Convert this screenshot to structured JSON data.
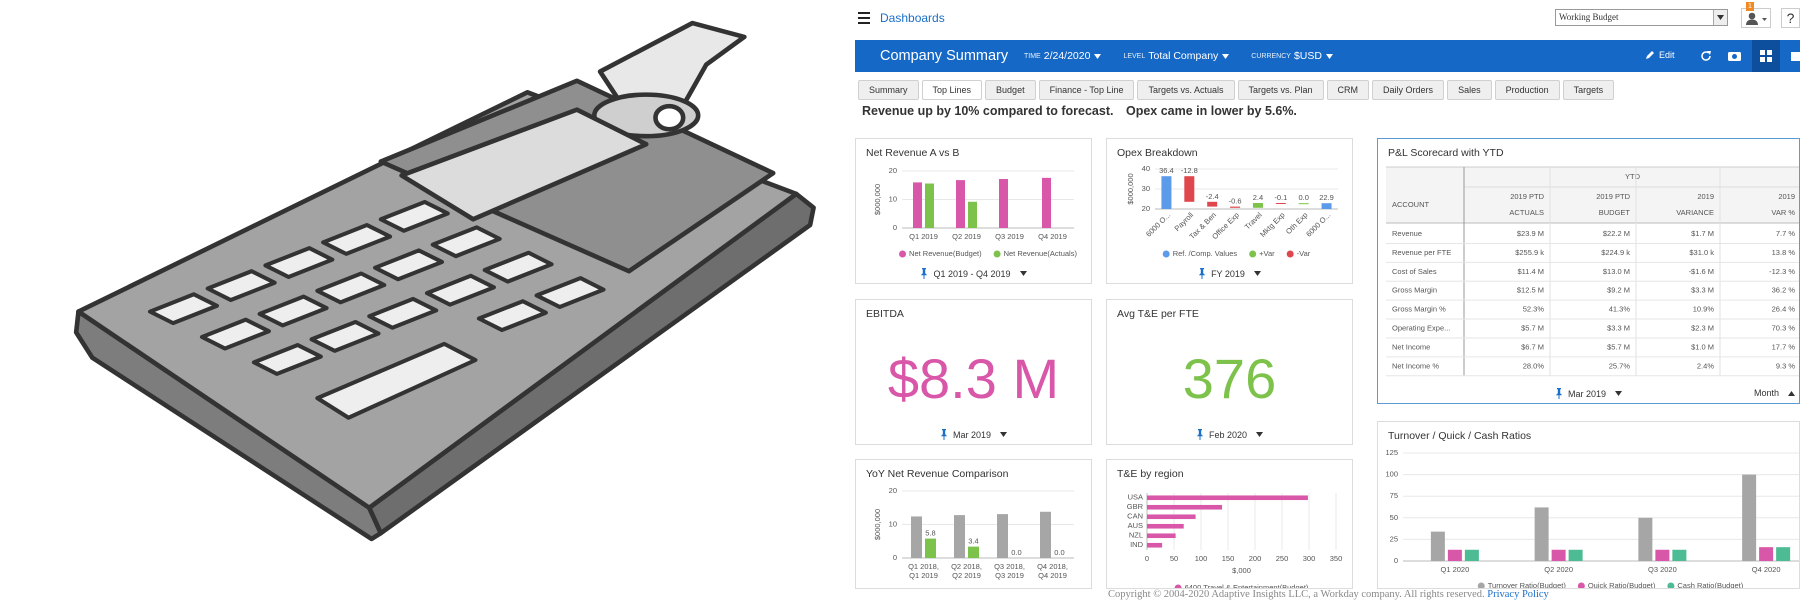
{
  "header": {
    "menu": "Dashboards",
    "budget": "Working Budget",
    "badge": "1",
    "help": "?"
  },
  "toolbar": {
    "title": "Company Summary",
    "filters": [
      {
        "label": "TIME",
        "value": "2/24/2020"
      },
      {
        "label": "LEVEL",
        "value": "Total Company"
      },
      {
        "label": "CURRENCY",
        "value": "$USD"
      }
    ],
    "edit": "Edit"
  },
  "tabs": {
    "items": [
      "Summary",
      "Top Lines",
      "Budget",
      "Finance - Top Line",
      "Targets vs. Actuals",
      "Targets vs. Plan",
      "CRM",
      "Daily Orders",
      "Sales",
      "Production",
      "Targets"
    ],
    "active": 1
  },
  "headlines": [
    "Revenue up by 10% compared to forecast.",
    "Opex came in lower by 5.6%."
  ],
  "widgets": [
    {
      "title": "Net Revenue A vs B",
      "filter": "Q1 2019 - Q4 2019",
      "chart": {
        "type": "bar",
        "y_label": "$000,000",
        "categories": [
          "Q1 2019",
          "Q2 2019",
          "Q3 2019",
          "Q4 2019"
        ],
        "series": [
          {
            "name": "Net Revenue(Budget)",
            "color": "#d957a8",
            "values": [
              16,
              16.8,
              17.2,
              17.6
            ]
          },
          {
            "name": "Net Revenue(Actuals)",
            "color": "#7dc24b",
            "values": [
              15.6,
              9.2,
              null,
              null
            ]
          }
        ],
        "ylim": [
          0,
          20
        ],
        "yticks": [
          0,
          10,
          20
        ]
      }
    },
    {
      "title": "Opex Breakdown",
      "filter": "FY 2019",
      "chart": {
        "type": "waterfall",
        "y_label": "$000,000",
        "categories": [
          "6000 O...",
          "Payroll",
          "Tax & Ben",
          "Office Exp",
          "Travel",
          "Mktg Exp",
          "Oth Exp",
          "6000 O..."
        ],
        "values": [
          36.4,
          -12.8,
          -2.4,
          -0.6,
          2.4,
          -0.1,
          0.0,
          22.9
        ],
        "value_labels": [
          "36.4",
          "-12.8",
          "-2.4",
          "-0.6",
          "2.4",
          "-0.1",
          "0.0",
          "22.9"
        ],
        "legend": [
          {
            "name": "Ref. /Comp. Values",
            "color": "#5b9bea"
          },
          {
            "name": "+Var",
            "color": "#7dc24b"
          },
          {
            "name": "-Var",
            "color": "#e0474c"
          }
        ],
        "ylim": [
          20,
          40
        ],
        "yticks": [
          20,
          30,
          40
        ]
      }
    },
    {
      "title": "EBITDA",
      "kpi": "$8.3 M",
      "kpi_color": "#d957a8",
      "filter": "Mar 2019"
    },
    {
      "title": "Avg T&E per FTE",
      "kpi": "376",
      "kpi_color": "#7dc24b",
      "filter": "Feb 2020"
    },
    {
      "title": "P&L Scorecard with YTD",
      "filter": "Mar 2019",
      "period": "Month",
      "table": {
        "group": "YTD",
        "columns": [
          {
            "lines": [
              "ACCOUNT"
            ]
          },
          {
            "lines": [
              "2019 PTD",
              "ACTUALS"
            ]
          },
          {
            "lines": [
              "2019 PTD",
              "BUDGET"
            ]
          },
          {
            "lines": [
              "2019",
              "VARIANCE"
            ]
          },
          {
            "lines": [
              "2019",
              "VAR %"
            ]
          }
        ],
        "rows": [
          [
            "Revenue",
            "$23.9 M",
            "$22.2 M",
            "$1.7 M",
            "7.7 %"
          ],
          [
            "Revenue per FTE",
            "$255.9 k",
            "$224.9 k",
            "$31.0 k",
            "13.8 %"
          ],
          [
            "Cost of Sales",
            "$11.4 M",
            "$13.0 M",
            "-$1.6 M",
            "-12.3 %"
          ],
          [
            "Gross Margin",
            "$12.5 M",
            "$9.2 M",
            "$3.3 M",
            "36.2 %"
          ],
          [
            "Gross Margin %",
            "52.3%",
            "41.3%",
            "10.9%",
            "26.4 %"
          ],
          [
            "Operating Expe...",
            "$5.7 M",
            "$3.3 M",
            "$2.3 M",
            "70.3 %"
          ],
          [
            "Net Income",
            "$6.7 M",
            "$5.7 M",
            "$1.0 M",
            "17.7 %"
          ],
          [
            "Net Income %",
            "28.0%",
            "25.7%",
            "2.4%",
            "9.3 %"
          ]
        ]
      }
    },
    {
      "title": "YoY Net Revenue Comparison",
      "chart": {
        "type": "bar",
        "y_label": "$000,000",
        "categories": [
          [
            "Q1 2018,",
            "Q1 2019"
          ],
          [
            "Q2 2018,",
            "Q2 2019"
          ],
          [
            "Q3 2018,",
            "Q3 2019"
          ],
          [
            "Q4 2018,",
            "Q4 2019"
          ]
        ],
        "series": [
          {
            "color": "#a6a6a6",
            "values": [
              12.4,
              12.8,
              13.1,
              13.8
            ]
          },
          {
            "color": "#7dc24b",
            "values": [
              5.8,
              3.4,
              0.0,
              0.0
            ],
            "value_labels": [
              "5.8",
              "3.4",
              "0.0",
              "0.0"
            ]
          }
        ],
        "ylim": [
          0,
          20
        ],
        "yticks": [
          0,
          10,
          20
        ]
      }
    },
    {
      "title": "T&E by region",
      "chart": {
        "type": "hbar",
        "x_label": "$,000",
        "categories": [
          "USA",
          "GBR",
          "CAN",
          "AUS",
          "NZL",
          "IND"
        ],
        "series": [
          {
            "name": "6400 Travel & Entertainment(Budget)",
            "color": "#d957a8",
            "values": [
              298,
              139,
              90,
              68,
              53,
              28
            ]
          }
        ],
        "xlim": [
          0,
          350
        ],
        "xticks": [
          0,
          50,
          100,
          150,
          200,
          250,
          300,
          350
        ]
      }
    },
    {
      "title": "Turnover / Quick / Cash Ratios",
      "chart": {
        "type": "bar",
        "categories": [
          "Q1 2020",
          "Q2 2020",
          "Q3 2020",
          "Q4 2020"
        ],
        "series": [
          {
            "name": "Turnover Ratio(Budget)",
            "color": "#a6a6a6",
            "values": [
              34,
              62,
              50,
              100
            ]
          },
          {
            "name": "Quick Ratio(Budget)",
            "color": "#d957a8",
            "values": [
              13,
              13,
              13,
              16
            ]
          },
          {
            "name": "Cash Ratio(Budget)",
            "color": "#4dbb93",
            "values": [
              13,
              13,
              13,
              16
            ]
          }
        ],
        "ylim": [
          0,
          125
        ],
        "yticks": [
          0,
          25,
          50,
          75,
          100,
          125
        ]
      }
    }
  ],
  "footer": {
    "copyright": "Copyright © 2004-2020 Adaptive Insights LLC, a Workday company. All rights reserved.",
    "link": "Privacy Policy"
  }
}
